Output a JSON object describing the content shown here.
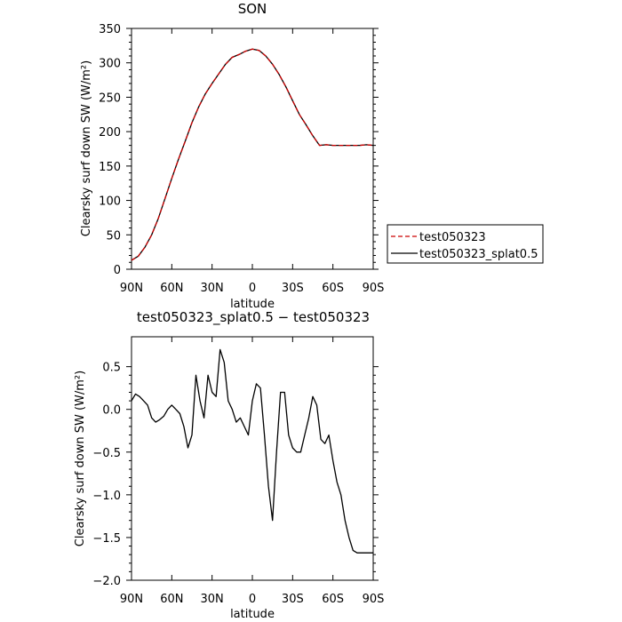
{
  "chart_data": [
    {
      "type": "line",
      "title": "SON",
      "xlabel": "latitude",
      "ylabel": "Clearsky surf down SW (W/m²)",
      "xlim": [
        -90,
        90
      ],
      "ylim": [
        0,
        350
      ],
      "xticks": [
        {
          "value": -90,
          "label": "90N"
        },
        {
          "value": -60,
          "label": "60N"
        },
        {
          "value": -30,
          "label": "30N"
        },
        {
          "value": 0,
          "label": "0"
        },
        {
          "value": 30,
          "label": "30S"
        },
        {
          "value": 60,
          "label": "60S"
        },
        {
          "value": 90,
          "label": "90S"
        }
      ],
      "yticks": [
        {
          "value": 0,
          "label": "0"
        },
        {
          "value": 50,
          "label": "50"
        },
        {
          "value": 100,
          "label": "100"
        },
        {
          "value": 150,
          "label": "150"
        },
        {
          "value": 200,
          "label": "200"
        },
        {
          "value": 250,
          "label": "250"
        },
        {
          "value": 300,
          "label": "300"
        },
        {
          "value": 350,
          "label": "350"
        }
      ],
      "legend_position": "right, outside",
      "series": [
        {
          "name": "test050323",
          "color": "#cc0000",
          "style": "dashed",
          "x": [
            -90,
            -85,
            -80,
            -75,
            -70,
            -65,
            -60,
            -55,
            -50,
            -45,
            -40,
            -35,
            -30,
            -25,
            -20,
            -15,
            -10,
            -5,
            0,
            5,
            10,
            15,
            20,
            25,
            30,
            35,
            40,
            45,
            50,
            55,
            60,
            65,
            70,
            75,
            80,
            85,
            90
          ],
          "y": [
            13,
            19,
            32,
            50,
            74,
            103,
            132,
            160,
            186,
            213,
            236,
            255,
            270,
            284,
            298,
            308,
            312,
            317,
            320,
            318,
            310,
            298,
            283,
            265,
            245,
            225,
            210,
            194,
            180,
            181,
            180,
            180,
            180,
            180,
            180,
            181,
            180
          ]
        },
        {
          "name": "test050323_splat0.5",
          "color": "#000000",
          "style": "solid",
          "x": [
            -90,
            -85,
            -80,
            -75,
            -70,
            -65,
            -60,
            -55,
            -50,
            -45,
            -40,
            -35,
            -30,
            -25,
            -20,
            -15,
            -10,
            -5,
            0,
            5,
            10,
            15,
            20,
            25,
            30,
            35,
            40,
            45,
            50,
            55,
            60,
            65,
            70,
            75,
            80,
            85,
            90
          ],
          "y": [
            13,
            19,
            32,
            50,
            74,
            103,
            132,
            160,
            186,
            213,
            236,
            255,
            270,
            284,
            298,
            308,
            312,
            317,
            320,
            318,
            310,
            298,
            283,
            265,
            245,
            225,
            210,
            194,
            180,
            181,
            180,
            180,
            180,
            180,
            180,
            181,
            180
          ]
        }
      ]
    },
    {
      "type": "line",
      "title": "test050323_splat0.5 − test050323",
      "xlabel": "latitude",
      "ylabel": "Clearsky surf down SW (W/m²)",
      "xlim": [
        -90,
        90
      ],
      "ylim": [
        -2.0,
        0.85
      ],
      "xticks": [
        {
          "value": -90,
          "label": "90N"
        },
        {
          "value": -60,
          "label": "60N"
        },
        {
          "value": -30,
          "label": "30N"
        },
        {
          "value": 0,
          "label": "0"
        },
        {
          "value": 30,
          "label": "30S"
        },
        {
          "value": 60,
          "label": "60S"
        },
        {
          "value": 90,
          "label": "90S"
        }
      ],
      "yticks": [
        {
          "value": 0.5,
          "label": "0.5"
        },
        {
          "value": 0.0,
          "label": "0.0"
        },
        {
          "value": -0.5,
          "label": "−0.5"
        },
        {
          "value": -1.0,
          "label": "−1.0"
        },
        {
          "value": -1.5,
          "label": "−1.5"
        },
        {
          "value": -2.0,
          "label": "−2.0"
        }
      ],
      "series": [
        {
          "color": "#000000",
          "style": "solid",
          "x": [
            -90,
            -87,
            -84,
            -81,
            -78,
            -75,
            -72,
            -69,
            -66,
            -63,
            -60,
            -57,
            -54,
            -51,
            -48,
            -45,
            -42,
            -39,
            -36,
            -33,
            -30,
            -27,
            -24,
            -21,
            -18,
            -15,
            -12,
            -9,
            -6,
            -3,
            0,
            3,
            6,
            9,
            12,
            15,
            18,
            21,
            24,
            27,
            30,
            33,
            36,
            39,
            42,
            45,
            48,
            51,
            54,
            57,
            60,
            63,
            66,
            69,
            72,
            75,
            78,
            81,
            84,
            87,
            90
          ],
          "y": [
            0.1,
            0.18,
            0.15,
            0.1,
            0.05,
            -0.1,
            -0.15,
            -0.12,
            -0.08,
            0.0,
            0.05,
            0.0,
            -0.05,
            -0.2,
            -0.45,
            -0.3,
            0.4,
            0.1,
            -0.1,
            0.4,
            0.2,
            0.15,
            0.7,
            0.55,
            0.1,
            0.0,
            -0.15,
            -0.1,
            -0.2,
            -0.3,
            0.1,
            0.3,
            0.25,
            -0.3,
            -0.9,
            -1.3,
            -0.5,
            0.2,
            0.2,
            -0.3,
            -0.45,
            -0.5,
            -0.5,
            -0.3,
            -0.1,
            0.15,
            0.05,
            -0.35,
            -0.4,
            -0.3,
            -0.6,
            -0.85,
            -1.0,
            -1.3,
            -1.5,
            -1.65,
            -1.68,
            -1.68,
            -1.68,
            -1.68,
            -1.68
          ]
        }
      ]
    }
  ]
}
